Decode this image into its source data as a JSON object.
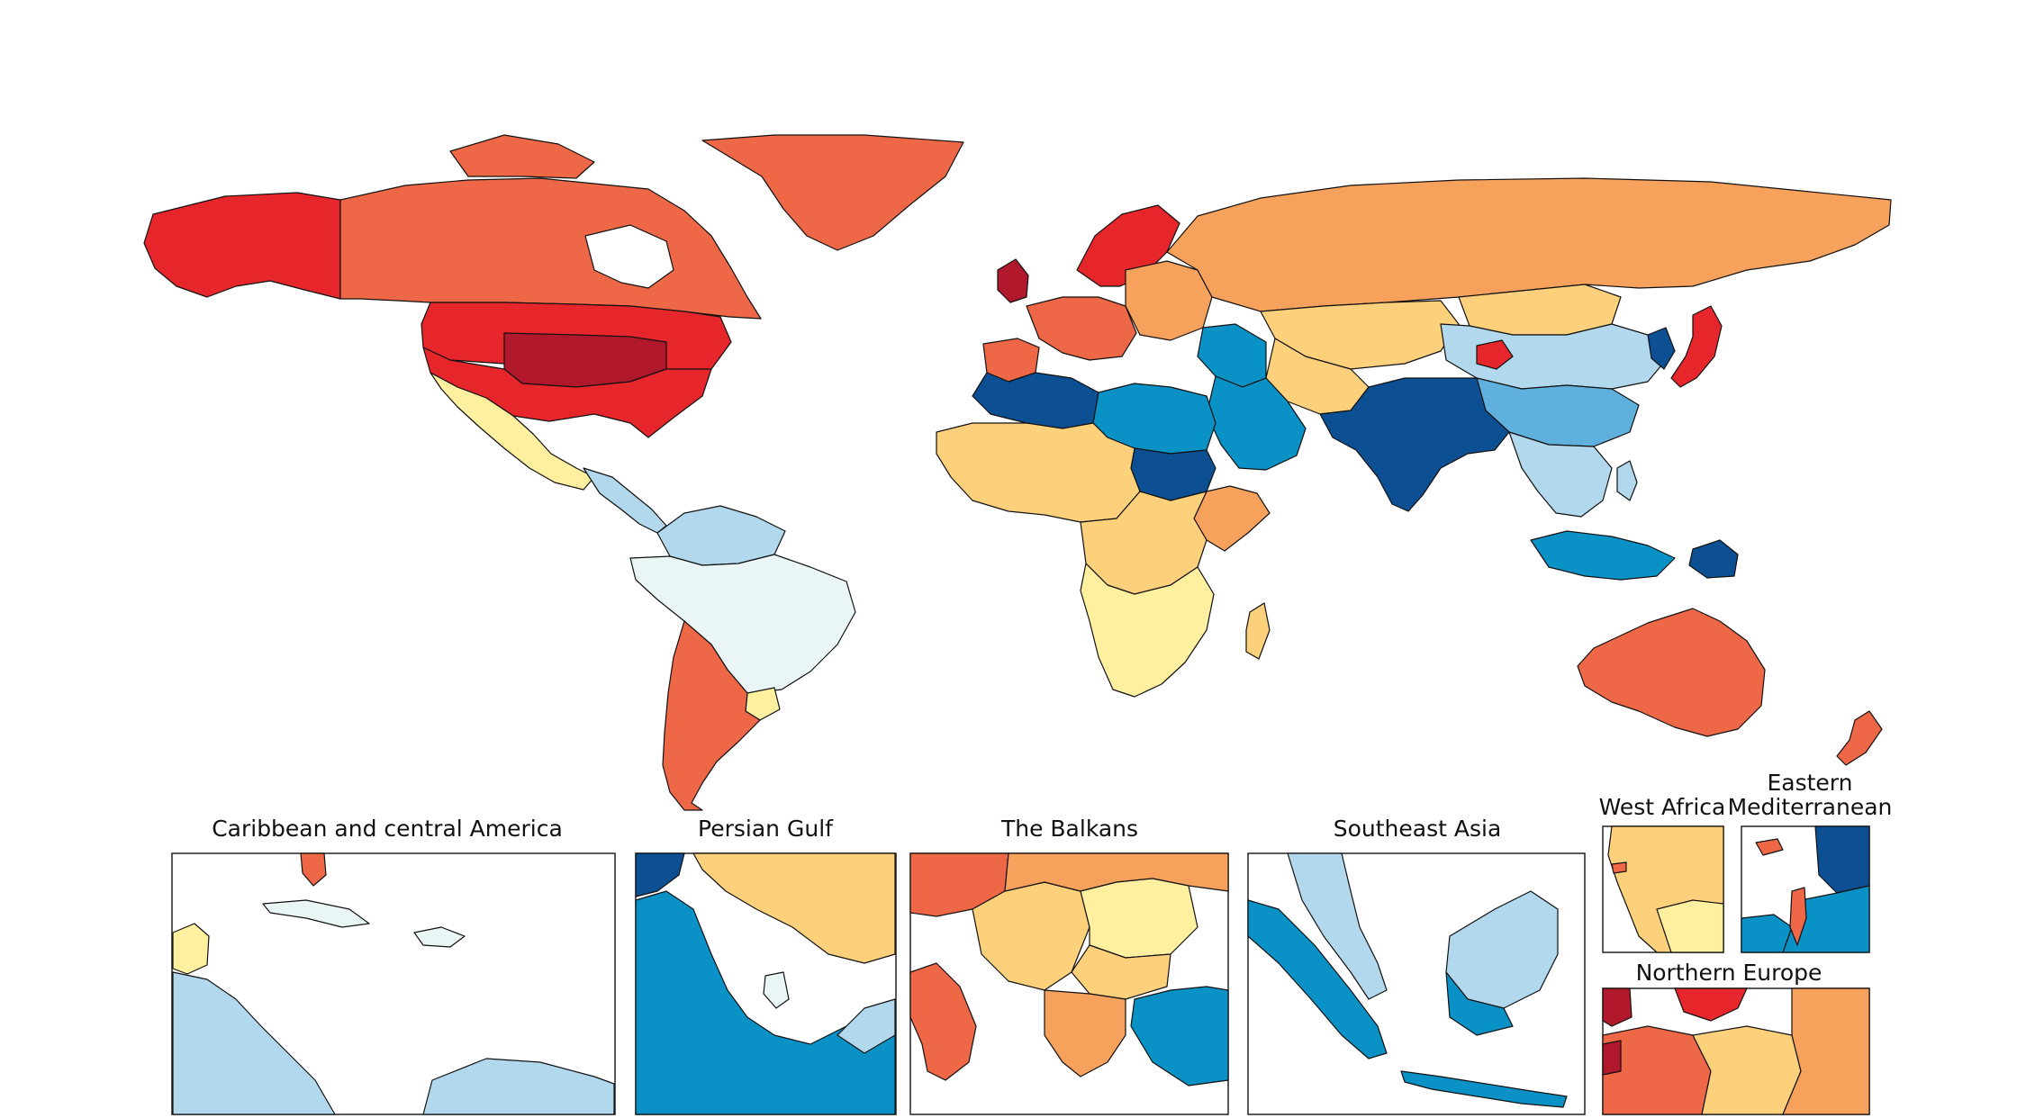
{
  "palette": {
    "c1": "#b2182b",
    "c2": "#e6262b",
    "c3": "#ee6746",
    "c4": "#f6a15c",
    "c5": "#fdd17c",
    "c6": "#fff0a0",
    "c7": "#eaf6f6",
    "c8": "#b1d8ec",
    "c9": "#5fb0dc",
    "c10": "#0a92c6",
    "c11": "#0c4f93",
    "border": "#111111",
    "background": "#ffffff"
  },
  "map": {
    "regions": [
      {
        "name": "alaska",
        "cls": "c2"
      },
      {
        "name": "canada",
        "cls": "c3"
      },
      {
        "name": "greenland",
        "cls": "c3"
      },
      {
        "name": "usa-north",
        "cls": "c2"
      },
      {
        "name": "usa-midwest",
        "cls": "c1"
      },
      {
        "name": "usa-south",
        "cls": "c2"
      },
      {
        "name": "mexico",
        "cls": "c6"
      },
      {
        "name": "central-america",
        "cls": "c8"
      },
      {
        "name": "colombia-venezuela",
        "cls": "c8"
      },
      {
        "name": "brazil-region",
        "cls": "c7"
      },
      {
        "name": "argentina-chile",
        "cls": "c3"
      },
      {
        "name": "uruguay",
        "cls": "c6"
      },
      {
        "name": "scandinavia",
        "cls": "c2"
      },
      {
        "name": "western-europe",
        "cls": "c3"
      },
      {
        "name": "uk-ireland",
        "cls": "c1"
      },
      {
        "name": "iberia",
        "cls": "c3"
      },
      {
        "name": "eastern-europe",
        "cls": "c4"
      },
      {
        "name": "russia",
        "cls": "c4"
      },
      {
        "name": "kazakhstan-central-asia",
        "cls": "c5"
      },
      {
        "name": "mongolia",
        "cls": "c5"
      },
      {
        "name": "china-north",
        "cls": "c8"
      },
      {
        "name": "china-central",
        "cls": "c9"
      },
      {
        "name": "china-hotspot",
        "cls": "c2"
      },
      {
        "name": "korea",
        "cls": "c11"
      },
      {
        "name": "japan",
        "cls": "c2"
      },
      {
        "name": "maghreb",
        "cls": "c11"
      },
      {
        "name": "libya-egypt",
        "cls": "c10"
      },
      {
        "name": "sudan",
        "cls": "c11"
      },
      {
        "name": "west-africa",
        "cls": "c5"
      },
      {
        "name": "horn-of-africa",
        "cls": "c4"
      },
      {
        "name": "central-africa",
        "cls": "c5"
      },
      {
        "name": "southern-africa",
        "cls": "c6"
      },
      {
        "name": "madagascar",
        "cls": "c5"
      },
      {
        "name": "middle-east",
        "cls": "c10"
      },
      {
        "name": "arabia",
        "cls": "c10"
      },
      {
        "name": "iran-afghanistan",
        "cls": "c5"
      },
      {
        "name": "south-asia",
        "cls": "c11"
      },
      {
        "name": "southeast-asia",
        "cls": "c8"
      },
      {
        "name": "indonesia",
        "cls": "c10"
      },
      {
        "name": "papua",
        "cls": "c11"
      },
      {
        "name": "australia",
        "cls": "c3"
      },
      {
        "name": "new-zealand",
        "cls": "c3"
      }
    ]
  },
  "insets": [
    {
      "id": "caribbean",
      "title": "Caribbean and central America"
    },
    {
      "id": "persian-gulf",
      "title": "Persian Gulf"
    },
    {
      "id": "balkans",
      "title": "The Balkans"
    },
    {
      "id": "southeast-asia",
      "title": "Southeast Asia"
    },
    {
      "id": "west-africa",
      "title": "West Africa"
    },
    {
      "id": "eastern-med",
      "title_line1": "Eastern",
      "title_line2": "Mediterranean"
    },
    {
      "id": "northern-europe",
      "title": "Northern Europe"
    }
  ]
}
